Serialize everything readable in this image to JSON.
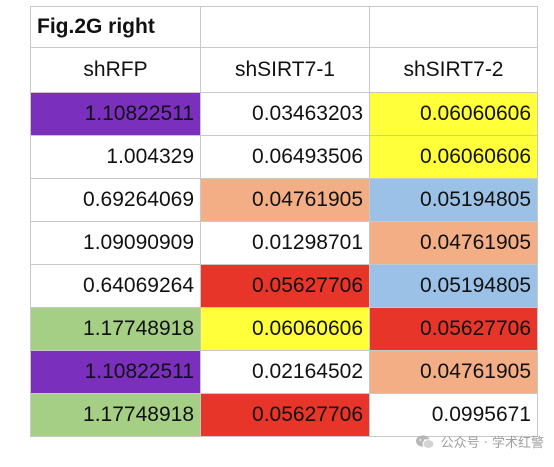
{
  "sheet": {
    "title": "Fig.2G right",
    "headers": [
      "shRFP",
      "shSIRT7-1",
      "shSIRT7-2"
    ],
    "rows": [
      [
        {
          "v": "1.10822511",
          "bg": "#7a2fbd"
        },
        {
          "v": "0.03463203",
          "bg": "#ffffff"
        },
        {
          "v": "0.06060606",
          "bg": "#ffff3a"
        }
      ],
      [
        {
          "v": "1.004329",
          "bg": "#ffffff"
        },
        {
          "v": "0.06493506",
          "bg": "#ffffff"
        },
        {
          "v": "0.06060606",
          "bg": "#ffff3a"
        }
      ],
      [
        {
          "v": "0.69264069",
          "bg": "#ffffff"
        },
        {
          "v": "0.04761905",
          "bg": "#f4ae85"
        },
        {
          "v": "0.05194805",
          "bg": "#9bc2e6"
        }
      ],
      [
        {
          "v": "1.09090909",
          "bg": "#ffffff"
        },
        {
          "v": "0.01298701",
          "bg": "#ffffff"
        },
        {
          "v": "0.04761905",
          "bg": "#f4ae85"
        }
      ],
      [
        {
          "v": "0.64069264",
          "bg": "#ffffff"
        },
        {
          "v": "0.05627706",
          "bg": "#e8352a"
        },
        {
          "v": "0.05194805",
          "bg": "#9bc2e6"
        }
      ],
      [
        {
          "v": "1.17748918",
          "bg": "#a6cf86"
        },
        {
          "v": "0.06060606",
          "bg": "#ffff3a"
        },
        {
          "v": "0.05627706",
          "bg": "#e8352a"
        }
      ],
      [
        {
          "v": "1.10822511",
          "bg": "#7a2fbd"
        },
        {
          "v": "0.02164502",
          "bg": "#ffffff"
        },
        {
          "v": "0.04761905",
          "bg": "#f4ae85"
        }
      ],
      [
        {
          "v": "1.17748918",
          "bg": "#a6cf86"
        },
        {
          "v": "0.05627706",
          "bg": "#e8352a"
        },
        {
          "v": "0.0995671",
          "bg": "#ffffff"
        }
      ]
    ]
  },
  "watermark": {
    "icon": "wechat-icon",
    "text": "公众号 · 学术红警"
  }
}
